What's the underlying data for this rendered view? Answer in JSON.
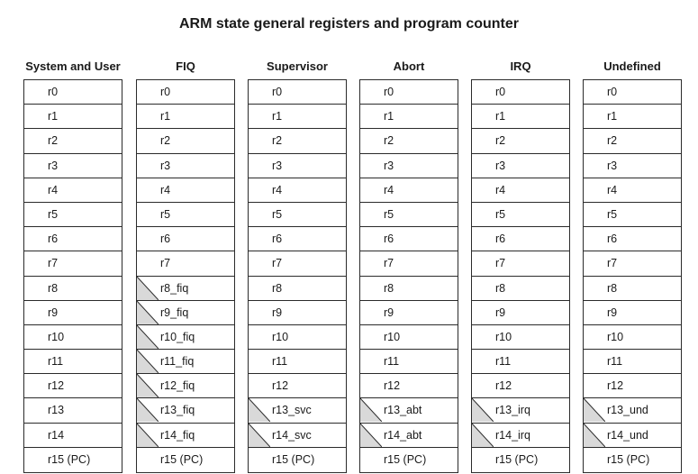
{
  "title": "ARM state general registers and program counter",
  "colors": {
    "border": "#2b2b2b",
    "banked_fill": "#d9d9d9",
    "text": "#1a1a1a"
  },
  "columns": [
    {
      "header": "System and User",
      "registers": [
        {
          "label": "r0",
          "banked": false
        },
        {
          "label": "r1",
          "banked": false
        },
        {
          "label": "r2",
          "banked": false
        },
        {
          "label": "r3",
          "banked": false
        },
        {
          "label": "r4",
          "banked": false
        },
        {
          "label": "r5",
          "banked": false
        },
        {
          "label": "r6",
          "banked": false
        },
        {
          "label": "r7",
          "banked": false
        },
        {
          "label": "r8",
          "banked": false
        },
        {
          "label": "r9",
          "banked": false
        },
        {
          "label": "r10",
          "banked": false
        },
        {
          "label": "r11",
          "banked": false
        },
        {
          "label": "r12",
          "banked": false
        },
        {
          "label": "r13",
          "banked": false
        },
        {
          "label": "r14",
          "banked": false
        },
        {
          "label": "r15 (PC)",
          "banked": false
        }
      ]
    },
    {
      "header": "FIQ",
      "registers": [
        {
          "label": "r0",
          "banked": false
        },
        {
          "label": "r1",
          "banked": false
        },
        {
          "label": "r2",
          "banked": false
        },
        {
          "label": "r3",
          "banked": false
        },
        {
          "label": "r4",
          "banked": false
        },
        {
          "label": "r5",
          "banked": false
        },
        {
          "label": "r6",
          "banked": false
        },
        {
          "label": "r7",
          "banked": false
        },
        {
          "label": "r8_fiq",
          "banked": true
        },
        {
          "label": "r9_fiq",
          "banked": true
        },
        {
          "label": "r10_fiq",
          "banked": true
        },
        {
          "label": "r11_fiq",
          "banked": true
        },
        {
          "label": "r12_fiq",
          "banked": true
        },
        {
          "label": "r13_fiq",
          "banked": true
        },
        {
          "label": "r14_fiq",
          "banked": true
        },
        {
          "label": "r15 (PC)",
          "banked": false
        }
      ]
    },
    {
      "header": "Supervisor",
      "registers": [
        {
          "label": "r0",
          "banked": false
        },
        {
          "label": "r1",
          "banked": false
        },
        {
          "label": "r2",
          "banked": false
        },
        {
          "label": "r3",
          "banked": false
        },
        {
          "label": "r4",
          "banked": false
        },
        {
          "label": "r5",
          "banked": false
        },
        {
          "label": "r6",
          "banked": false
        },
        {
          "label": "r7",
          "banked": false
        },
        {
          "label": "r8",
          "banked": false
        },
        {
          "label": "r9",
          "banked": false
        },
        {
          "label": "r10",
          "banked": false
        },
        {
          "label": "r11",
          "banked": false
        },
        {
          "label": "r12",
          "banked": false
        },
        {
          "label": "r13_svc",
          "banked": true
        },
        {
          "label": "r14_svc",
          "banked": true
        },
        {
          "label": "r15 (PC)",
          "banked": false
        }
      ]
    },
    {
      "header": "Abort",
      "registers": [
        {
          "label": "r0",
          "banked": false
        },
        {
          "label": "r1",
          "banked": false
        },
        {
          "label": "r2",
          "banked": false
        },
        {
          "label": "r3",
          "banked": false
        },
        {
          "label": "r4",
          "banked": false
        },
        {
          "label": "r5",
          "banked": false
        },
        {
          "label": "r6",
          "banked": false
        },
        {
          "label": "r7",
          "banked": false
        },
        {
          "label": "r8",
          "banked": false
        },
        {
          "label": "r9",
          "banked": false
        },
        {
          "label": "r10",
          "banked": false
        },
        {
          "label": "r11",
          "banked": false
        },
        {
          "label": "r12",
          "banked": false
        },
        {
          "label": "r13_abt",
          "banked": true
        },
        {
          "label": "r14_abt",
          "banked": true
        },
        {
          "label": "r15 (PC)",
          "banked": false
        }
      ]
    },
    {
      "header": "IRQ",
      "registers": [
        {
          "label": "r0",
          "banked": false
        },
        {
          "label": "r1",
          "banked": false
        },
        {
          "label": "r2",
          "banked": false
        },
        {
          "label": "r3",
          "banked": false
        },
        {
          "label": "r4",
          "banked": false
        },
        {
          "label": "r5",
          "banked": false
        },
        {
          "label": "r6",
          "banked": false
        },
        {
          "label": "r7",
          "banked": false
        },
        {
          "label": "r8",
          "banked": false
        },
        {
          "label": "r9",
          "banked": false
        },
        {
          "label": "r10",
          "banked": false
        },
        {
          "label": "r11",
          "banked": false
        },
        {
          "label": "r12",
          "banked": false
        },
        {
          "label": "r13_irq",
          "banked": true
        },
        {
          "label": "r14_irq",
          "banked": true
        },
        {
          "label": "r15 (PC)",
          "banked": false
        }
      ]
    },
    {
      "header": "Undefined",
      "registers": [
        {
          "label": "r0",
          "banked": false
        },
        {
          "label": "r1",
          "banked": false
        },
        {
          "label": "r2",
          "banked": false
        },
        {
          "label": "r3",
          "banked": false
        },
        {
          "label": "r4",
          "banked": false
        },
        {
          "label": "r5",
          "banked": false
        },
        {
          "label": "r6",
          "banked": false
        },
        {
          "label": "r7",
          "banked": false
        },
        {
          "label": "r8",
          "banked": false
        },
        {
          "label": "r9",
          "banked": false
        },
        {
          "label": "r10",
          "banked": false
        },
        {
          "label": "r11",
          "banked": false
        },
        {
          "label": "r12",
          "banked": false
        },
        {
          "label": "r13_und",
          "banked": true
        },
        {
          "label": "r14_und",
          "banked": true
        },
        {
          "label": "r15 (PC)",
          "banked": false
        }
      ]
    }
  ]
}
